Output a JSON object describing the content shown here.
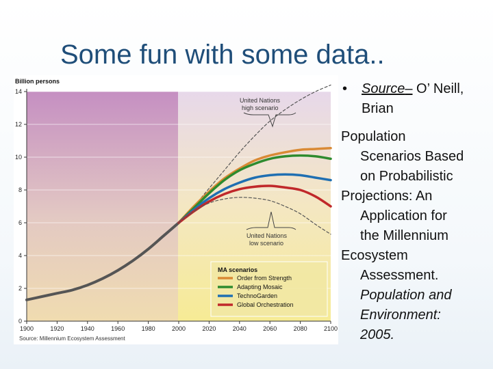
{
  "slide": {
    "title": "Some fun with some data.."
  },
  "bullet": {
    "source_label": "Source",
    "dash": "–",
    "source_name": " O’ Neill, Brian"
  },
  "citation": {
    "line1": "Population",
    "line2": "Scenarios Based",
    "line3": "on Probabilistic",
    "line4": "Projections: An",
    "line5": "Application for",
    "line6": "the Millennium",
    "line7": "Ecosystem",
    "line8": "Assessment.",
    "line9": "Population and",
    "line10": "Environment:",
    "line11": "2005."
  },
  "chart_data": {
    "type": "line",
    "ylabel": "Billion persons",
    "source_note": "Source: Millennium Ecosystem Assessment",
    "xlim": [
      1900,
      2100
    ],
    "ylim": [
      0,
      14
    ],
    "x_ticks": [
      "1900",
      "1920",
      "1940",
      "1960",
      "1980",
      "2000",
      "2020",
      "2040",
      "2060",
      "2080",
      "2100"
    ],
    "y_ticks": [
      "0",
      "2",
      "4",
      "6",
      "8",
      "10",
      "12",
      "14"
    ],
    "historical": {
      "x": [
        1900,
        1910,
        1920,
        1930,
        1940,
        1950,
        1960,
        1970,
        1980,
        1990,
        2000
      ],
      "values": [
        1.3,
        1.5,
        1.7,
        1.9,
        2.2,
        2.6,
        3.1,
        3.7,
        4.4,
        5.2,
        6.0
      ]
    },
    "x": [
      2000,
      2010,
      2020,
      2030,
      2040,
      2050,
      2060,
      2070,
      2080,
      2090,
      2100
    ],
    "series": [
      {
        "name": "United Nations high scenario",
        "dashed": true,
        "color": "#555555",
        "values": [
          6.0,
          7.0,
          8.1,
          9.2,
          10.3,
          11.3,
          12.2,
          12.9,
          13.5,
          14.0,
          14.4
        ]
      },
      {
        "name": "Order from Strength",
        "color": "#d98a35",
        "values": [
          6.0,
          7.0,
          7.9,
          8.7,
          9.3,
          9.8,
          10.1,
          10.3,
          10.45,
          10.5,
          10.55
        ]
      },
      {
        "name": "Adapting Mosaic",
        "color": "#2e8b2e",
        "values": [
          6.0,
          6.9,
          7.8,
          8.6,
          9.2,
          9.6,
          9.9,
          10.05,
          10.1,
          10.05,
          9.9
        ]
      },
      {
        "name": "TechnoGarden",
        "color": "#1f6fb2",
        "values": [
          6.0,
          6.8,
          7.5,
          8.05,
          8.45,
          8.75,
          8.9,
          8.95,
          8.9,
          8.75,
          8.6
        ]
      },
      {
        "name": "Global Orchestration",
        "color": "#c0282a",
        "values": [
          6.0,
          6.7,
          7.3,
          7.75,
          8.05,
          8.2,
          8.25,
          8.15,
          8.0,
          7.6,
          7.0
        ]
      },
      {
        "name": "United Nations low scenario",
        "dashed": true,
        "color": "#555555",
        "values": [
          6.0,
          6.7,
          7.2,
          7.45,
          7.55,
          7.5,
          7.35,
          7.0,
          6.55,
          5.9,
          5.3
        ]
      }
    ],
    "annotations": {
      "high": [
        "United Nations",
        "high scenario"
      ],
      "low": [
        "United Nations",
        "low scenario"
      ]
    },
    "legend": {
      "title": "MA scenarios",
      "items": [
        "Order from Strength",
        "Adapting Mosaic",
        "TechnoGarden",
        "Global Orchestration"
      ]
    },
    "colors": {
      "historical_line": "#555555",
      "past_bg": "#c58fc2",
      "future_bg": "#f3e88e"
    },
    "grid": true
  }
}
